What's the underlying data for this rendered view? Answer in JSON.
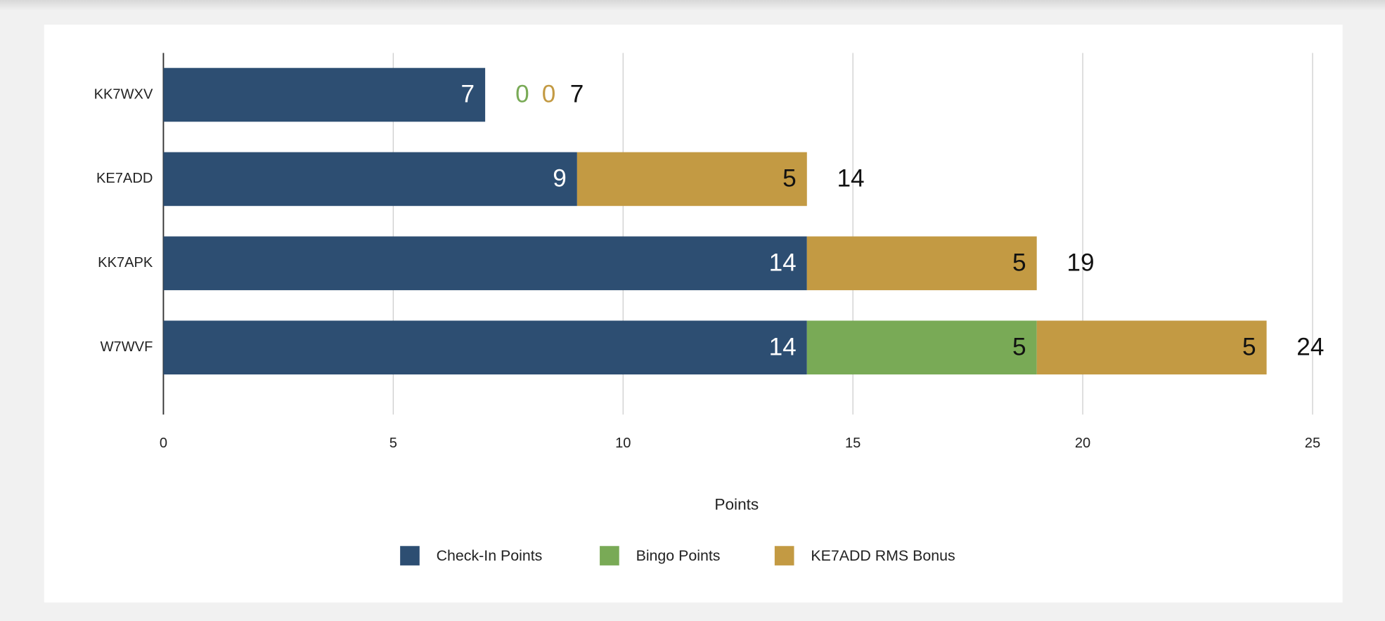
{
  "chart_data": {
    "type": "stacked-bar-horizontal",
    "categories": [
      "KK7WXV",
      "KE7ADD",
      "KK7APK",
      "W7WVF"
    ],
    "series": [
      {
        "name": "Check-In Points",
        "color": "#2d4e72",
        "values": [
          7,
          9,
          14,
          14
        ]
      },
      {
        "name": "Bingo Points",
        "color": "#79aa56",
        "values": [
          0,
          0,
          0,
          5
        ]
      },
      {
        "name": "KE7ADD RMS Bonus",
        "color": "#c39a43",
        "values": [
          0,
          5,
          5,
          5
        ]
      }
    ],
    "totals": [
      7,
      14,
      19,
      24
    ],
    "xlabel": "Points",
    "xlim": [
      0,
      25
    ],
    "xticks": [
      0,
      5,
      10,
      15,
      20,
      25
    ],
    "grid": true,
    "legend": "bottom"
  }
}
